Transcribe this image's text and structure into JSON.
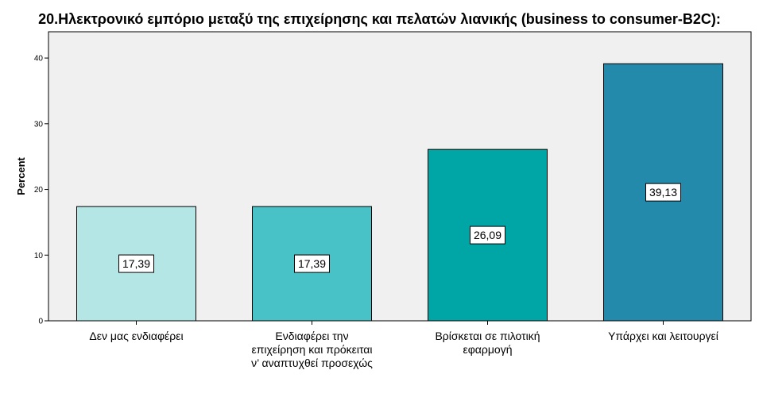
{
  "chart_data": {
    "type": "bar",
    "title": "20.Ηλεκτρονικό εμπόριο μεταξύ της επιχείρησης και πελατών λιανικής (business to consumer-B2C):",
    "xlabel": "",
    "ylabel": "Percent",
    "ylim": [
      0,
      44
    ],
    "yticks": [
      0,
      10,
      20,
      30,
      40
    ],
    "grid": false,
    "categories": [
      [
        "Δεν μας ενδιαφέρει"
      ],
      [
        "Ενδιαφέρει την",
        "επιχείρηση και πρόκειται",
        "ν’ αναπτυχθεί προσεχώς"
      ],
      [
        "Βρίσκεται σε πιλοτική",
        "εφαρμογή"
      ],
      [
        "Υπάρχει και λειτουργεί"
      ]
    ],
    "values": [
      17.39,
      17.39,
      26.09,
      39.13
    ],
    "data_labels": [
      "17,39",
      "17,39",
      "26,09",
      "39,13"
    ],
    "colors": [
      "#b4e6e6",
      "#48c2c6",
      "#00a6a6",
      "#248aab"
    ],
    "plot_background": "#f0f0f0"
  }
}
